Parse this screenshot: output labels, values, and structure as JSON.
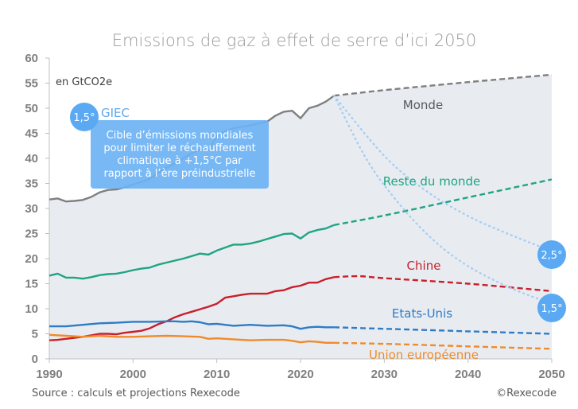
{
  "chart_data": {
    "type": "line",
    "title": "Emissions de gaz à effet de serre d’ici 2050",
    "unit_label": "en GtCO2e",
    "xlabel": "",
    "ylabel": "",
    "xlim": [
      1990,
      2050
    ],
    "ylim": [
      0,
      60
    ],
    "x_ticks": [
      1990,
      2000,
      2010,
      2020,
      2030,
      2040,
      2050
    ],
    "y_ticks": [
      0,
      5,
      10,
      15,
      20,
      25,
      30,
      35,
      40,
      45,
      50,
      55,
      60
    ],
    "grid": false,
    "projection_start": 2024,
    "series": [
      {
        "name": "Monde",
        "color": "#7f7f7f",
        "historical": {
          "x": [
            1990,
            1991,
            1992,
            1993,
            1994,
            1995,
            1996,
            1997,
            1998,
            1999,
            2000,
            2001,
            2002,
            2003,
            2004,
            2005,
            2006,
            2007,
            2008,
            2009,
            2010,
            2011,
            2012,
            2013,
            2014,
            2015,
            2016,
            2017,
            2018,
            2019,
            2020,
            2021,
            2022,
            2023,
            2024
          ],
          "y": [
            31.8,
            32.0,
            31.4,
            31.5,
            31.7,
            32.3,
            33.2,
            33.7,
            33.8,
            34.2,
            34.8,
            35.3,
            35.9,
            37.2,
            38.2,
            39.0,
            40.0,
            41.0,
            41.8,
            41.6,
            44.5,
            45.4,
            46.0,
            46.3,
            46.6,
            47.0,
            47.3,
            48.5,
            49.3,
            49.5,
            48.0,
            50.0,
            50.5,
            51.3,
            52.5
          ]
        },
        "projection": {
          "x": [
            2024,
            2030,
            2040,
            2050
          ],
          "y": [
            52.5,
            53.6,
            55.2,
            56.7
          ]
        }
      },
      {
        "name": "Reste du monde",
        "color": "#1fa484",
        "historical": {
          "x": [
            1990,
            1991,
            1992,
            1993,
            1994,
            1995,
            1996,
            1997,
            1998,
            1999,
            2000,
            2001,
            2002,
            2003,
            2004,
            2005,
            2006,
            2007,
            2008,
            2009,
            2010,
            2011,
            2012,
            2013,
            2014,
            2015,
            2016,
            2017,
            2018,
            2019,
            2020,
            2021,
            2022,
            2023,
            2024
          ],
          "y": [
            16.6,
            17.0,
            16.2,
            16.2,
            16.0,
            16.3,
            16.7,
            16.9,
            17.0,
            17.3,
            17.7,
            18.0,
            18.2,
            18.8,
            19.2,
            19.6,
            20.0,
            20.5,
            21.0,
            20.8,
            21.6,
            22.2,
            22.8,
            22.8,
            23.0,
            23.4,
            23.9,
            24.4,
            24.9,
            25.0,
            24.0,
            25.2,
            25.7,
            26.0,
            26.7
          ]
        },
        "projection": {
          "x": [
            2024,
            2030,
            2040,
            2050
          ],
          "y": [
            26.7,
            28.6,
            32.2,
            35.8
          ]
        }
      },
      {
        "name": "Chine",
        "color": "#c8202a",
        "historical": {
          "x": [
            1990,
            1991,
            1992,
            1993,
            1994,
            1995,
            1996,
            1997,
            1998,
            1999,
            2000,
            2001,
            2002,
            2003,
            2004,
            2005,
            2006,
            2007,
            2008,
            2009,
            2010,
            2011,
            2012,
            2013,
            2014,
            2015,
            2016,
            2017,
            2018,
            2019,
            2020,
            2021,
            2022,
            2023,
            2024
          ],
          "y": [
            3.7,
            3.8,
            4.0,
            4.2,
            4.4,
            4.7,
            5.0,
            5.0,
            4.9,
            5.2,
            5.4,
            5.6,
            6.1,
            6.9,
            7.5,
            8.3,
            8.9,
            9.4,
            9.9,
            10.4,
            11.0,
            12.2,
            12.5,
            12.8,
            13.0,
            13.0,
            13.0,
            13.5,
            13.7,
            14.3,
            14.6,
            15.2,
            15.2,
            15.9,
            16.3
          ]
        },
        "projection": {
          "x": [
            2024,
            2027,
            2030,
            2040,
            2050
          ],
          "y": [
            16.3,
            16.5,
            16.1,
            15.0,
            13.5
          ]
        }
      },
      {
        "name": "Etats-Unis",
        "color": "#2e7cc6",
        "historical": {
          "x": [
            1990,
            1992,
            1994,
            1996,
            1998,
            2000,
            2002,
            2004,
            2005,
            2006,
            2007,
            2008,
            2009,
            2010,
            2012,
            2014,
            2016,
            2018,
            2019,
            2020,
            2021,
            2022,
            2023,
            2024
          ],
          "y": [
            6.5,
            6.5,
            6.8,
            7.1,
            7.2,
            7.4,
            7.4,
            7.5,
            7.5,
            7.4,
            7.5,
            7.3,
            6.9,
            7.0,
            6.6,
            6.8,
            6.6,
            6.7,
            6.5,
            6.0,
            6.3,
            6.4,
            6.3,
            6.3
          ]
        },
        "projection": {
          "x": [
            2024,
            2030,
            2040,
            2050
          ],
          "y": [
            6.3,
            6.0,
            5.5,
            5.0
          ]
        }
      },
      {
        "name": "Union européenne",
        "color": "#f08a2c",
        "historical": {
          "x": [
            1990,
            1992,
            1994,
            1996,
            1998,
            2000,
            2002,
            2004,
            2006,
            2008,
            2009,
            2010,
            2012,
            2014,
            2016,
            2018,
            2019,
            2020,
            2021,
            2022,
            2023,
            2024
          ],
          "y": [
            4.8,
            4.6,
            4.4,
            4.6,
            4.4,
            4.4,
            4.5,
            4.6,
            4.5,
            4.4,
            4.0,
            4.1,
            3.9,
            3.7,
            3.8,
            3.8,
            3.6,
            3.3,
            3.5,
            3.4,
            3.2,
            3.2
          ]
        },
        "projection": {
          "x": [
            2024,
            2030,
            2040,
            2050
          ],
          "y": [
            3.2,
            3.0,
            2.5,
            2.0
          ]
        }
      }
    ],
    "trajectories": [
      {
        "name": "2,5°",
        "color": "#a9cdf2",
        "x": [
          2024,
          2030,
          2035,
          2040,
          2045,
          2050
        ],
        "y": [
          52.5,
          40.5,
          33.5,
          28.5,
          24.8,
          21.5
        ]
      },
      {
        "name": "1,5°",
        "color": "#a9cdf2",
        "x": [
          2024,
          2028,
          2032,
          2036,
          2040,
          2045,
          2050
        ],
        "y": [
          52.5,
          39.5,
          30.5,
          23.5,
          18.5,
          14.2,
          11.0
        ]
      }
    ],
    "annotations": {
      "giec_badge": "1,5°",
      "giec_label": "GIEC",
      "note_lines": [
        "Cible d’émissions mondiales",
        "pour limiter le réchauffement",
        "climatique à +1,5°C par",
        "rapport à l’ère préindustrielle"
      ],
      "badge_2_5": "2,5°",
      "badge_1_5": "1,5°"
    },
    "source": "Source : calculs et projections Rexecode",
    "copyright": "©Rexecode"
  }
}
